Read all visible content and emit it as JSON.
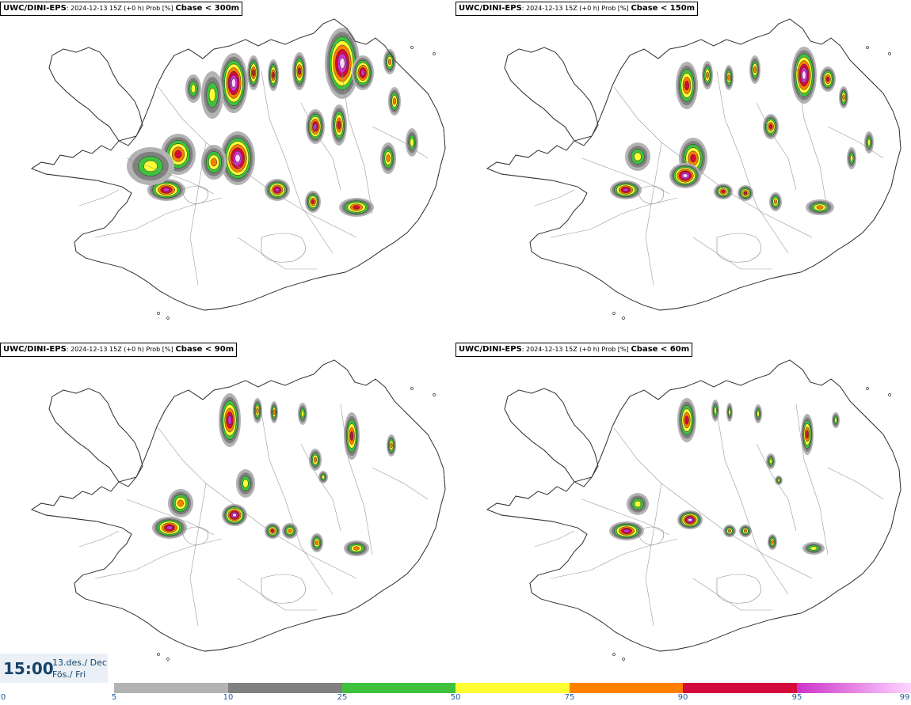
{
  "panels": [
    {
      "id": "p300",
      "model": "UWC/DINI-EPS",
      "sub": ": 2024-12-13 15Z (+0 h) Prob [%]",
      "var": "Cbase < 300m"
    },
    {
      "id": "p150",
      "model": "UWC/DINI-EPS",
      "sub": ": 2024-12-13 15Z (+0 h) Prob [%]",
      "var": "Cbase < 150m"
    },
    {
      "id": "p90",
      "model": "UWC/DINI-EPS",
      "sub": ": 2024-12-13 15Z (+0 h) Prob [%]",
      "var": "Cbase < 90m"
    },
    {
      "id": "p60",
      "model": "UWC/DINI-EPS",
      "sub": ": 2024-12-13 15Z (+0 h) Prob [%]",
      "var": "Cbase < 60m"
    }
  ],
  "time_box": {
    "time": "15:00",
    "date_line1": "13.des./ Dec",
    "date_line2": "Fös./ Fri"
  },
  "colorbar": {
    "labels": [
      "0",
      "5",
      "10",
      "25",
      "50",
      "75",
      "90",
      "95",
      "99"
    ],
    "colors": {
      "5_10": "#b3b3b3",
      "10_25": "#808080",
      "25_50": "#3ec23e",
      "50_75": "#ffff33",
      "75_90": "#ff7f00",
      "90_95": "#d40a3c",
      "95_99_start": "#cc33cc",
      "95_99_end": "#ffd6ff"
    }
  }
}
